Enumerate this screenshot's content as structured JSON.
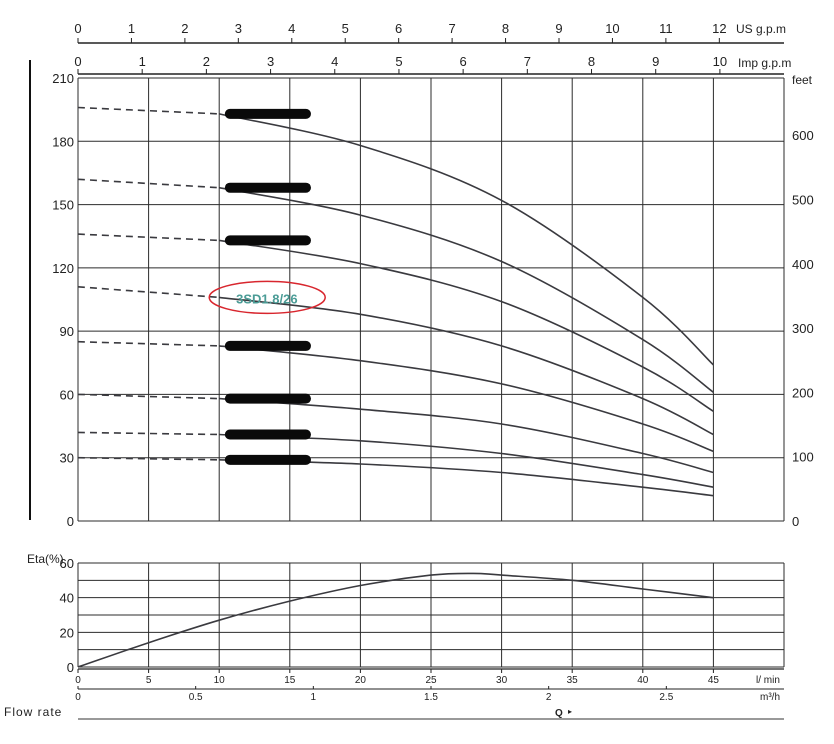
{
  "labels": {
    "us_gpm_unit": "US g.p.m",
    "imp_gpm_unit": "Imp g.p.m",
    "feet_unit": "feet",
    "eta_label": "Eta(%)",
    "lmin_unit": "l/ min",
    "m3h_unit": "m³/h",
    "flow_rate": "Flow rate",
    "q_label": "Q"
  },
  "chart_data": [
    {
      "type": "line",
      "chart": "head-capacity",
      "x_unit": "l/min",
      "xlim": [
        0,
        50
      ],
      "ylim": [
        0,
        210
      ],
      "y_ticks": [
        0,
        30,
        60,
        90,
        120,
        150,
        180,
        210
      ],
      "y_right_ticks_feet": [
        0,
        100,
        200,
        300,
        400,
        500,
        600
      ],
      "top_us_gpm_ticks": [
        0,
        1,
        2,
        3,
        4,
        5,
        6,
        7,
        8,
        9,
        10,
        11,
        12
      ],
      "top_imp_gpm_ticks": [
        0,
        1,
        2,
        3,
        4,
        5,
        6,
        7,
        8,
        9,
        10
      ],
      "grid": true,
      "highlighted_label": "3SD1.8/26",
      "series": [
        {
          "x": [
            0,
            10,
            20,
            30,
            40,
            45
          ],
          "y": [
            196,
            193,
            178,
            152,
            106,
            74
          ],
          "redacted": true
        },
        {
          "x": [
            0,
            10,
            20,
            30,
            40,
            45
          ],
          "y": [
            162,
            158,
            145,
            123,
            86,
            61
          ],
          "redacted": true
        },
        {
          "x": [
            0,
            10,
            20,
            30,
            40,
            45
          ],
          "y": [
            136,
            133,
            122,
            104,
            73,
            52
          ],
          "redacted": true
        },
        {
          "x": [
            0,
            10,
            20,
            30,
            40,
            45
          ],
          "y": [
            111,
            106,
            98,
            83,
            58,
            41
          ],
          "name": "3SD1.8/26"
        },
        {
          "x": [
            0,
            10,
            20,
            30,
            40,
            45
          ],
          "y": [
            85,
            83,
            76,
            65,
            46,
            33
          ],
          "redacted": true
        },
        {
          "x": [
            0,
            10,
            20,
            30,
            40,
            45
          ],
          "y": [
            60,
            58,
            53,
            46,
            32,
            23
          ],
          "redacted": true
        },
        {
          "x": [
            0,
            10,
            20,
            30,
            40,
            45
          ],
          "y": [
            42,
            41,
            38,
            32,
            22,
            16
          ],
          "redacted": true
        },
        {
          "x": [
            0,
            10,
            20,
            30,
            40,
            45
          ],
          "y": [
            30,
            29,
            27,
            23,
            16,
            12
          ],
          "redacted": true
        }
      ]
    },
    {
      "type": "line",
      "chart": "efficiency",
      "ylabel": "Eta(%)",
      "xlabel": "Flow rate",
      "xlim": [
        0,
        50
      ],
      "ylim": [
        0,
        60
      ],
      "y_ticks": [
        0,
        20,
        40,
        60
      ],
      "x_lmin_ticks": [
        0,
        5,
        10,
        15,
        20,
        25,
        30,
        35,
        40,
        45
      ],
      "x_m3h_ticks": [
        "0",
        "0.5",
        "1",
        "1.5",
        "2",
        "2.5"
      ],
      "grid": true,
      "series": [
        {
          "x": [
            0,
            5,
            10,
            15,
            20,
            25,
            28,
            30,
            35,
            40,
            45
          ],
          "y": [
            0,
            14,
            27,
            38,
            47,
            53,
            54,
            53,
            50,
            45,
            40
          ]
        }
      ]
    }
  ]
}
